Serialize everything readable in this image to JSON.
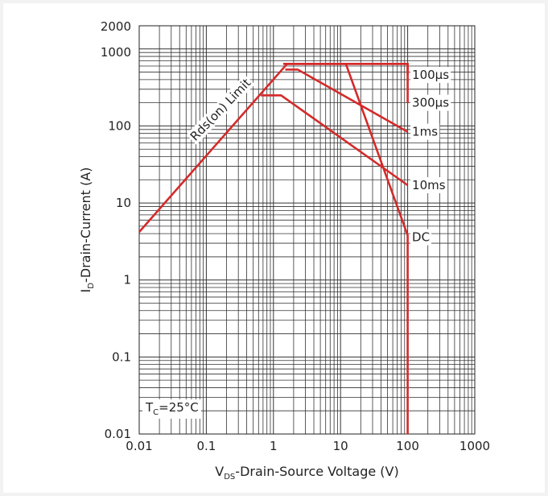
{
  "chart_data": {
    "type": "line",
    "title": "",
    "xlabel": {
      "main": "V",
      "sub": "DS",
      "rest": "-Drain-Source Voltage (V)"
    },
    "ylabel": {
      "main": "I",
      "sub": "D",
      "rest": "-Drain-Current (A)"
    },
    "x_scale": "log",
    "y_scale": "log",
    "xlim": [
      0.01,
      1000
    ],
    "ylim": [
      0.01,
      2000
    ],
    "x_ticks": [
      {
        "value": 0.01,
        "label": "0.01"
      },
      {
        "value": 0.1,
        "label": "0.1"
      },
      {
        "value": 1,
        "label": "1"
      },
      {
        "value": 10,
        "label": "10"
      },
      {
        "value": 100,
        "label": "100"
      },
      {
        "value": 1000,
        "label": "1000"
      }
    ],
    "y_ticks": [
      {
        "value": 0.01,
        "label": "0.01"
      },
      {
        "value": 0.1,
        "label": "0.1"
      },
      {
        "value": 1,
        "label": "1"
      },
      {
        "value": 10,
        "label": "10"
      },
      {
        "value": 100,
        "label": "100"
      },
      {
        "value": 1000,
        "label": "1000"
      },
      {
        "value": 2000,
        "label": "2000"
      }
    ],
    "grid": true,
    "line_color": "#d42a2a",
    "series": [
      {
        "name": "Rds(on) Limit",
        "points": [
          [
            0.01,
            4.2
          ],
          [
            1.6,
            640
          ]
        ]
      },
      {
        "name": "100µs",
        "points": [
          [
            1.6,
            640
          ],
          [
            100,
            640
          ],
          [
            100,
            460
          ]
        ]
      },
      {
        "name": "300µs",
        "points": [
          [
            1.4,
            640
          ],
          [
            100,
            640
          ],
          [
            100,
            200
          ]
        ]
      },
      {
        "name": "1ms",
        "points": [
          [
            1.5,
            540
          ],
          [
            2.3,
            540
          ],
          [
            100,
            84
          ]
        ]
      },
      {
        "name": "10ms",
        "points": [
          [
            0.65,
            250
          ],
          [
            1.3,
            250
          ],
          [
            100,
            17
          ]
        ]
      },
      {
        "name": "DC",
        "points": [
          [
            1.6,
            640
          ],
          [
            12,
            640
          ],
          [
            100,
            3.8
          ],
          [
            100,
            0.01
          ]
        ]
      }
    ],
    "annotations": {
      "rds_label": "Rds(on) Limit",
      "tc": {
        "main": "T",
        "sub": "C",
        "rest": "=25°C"
      }
    }
  }
}
